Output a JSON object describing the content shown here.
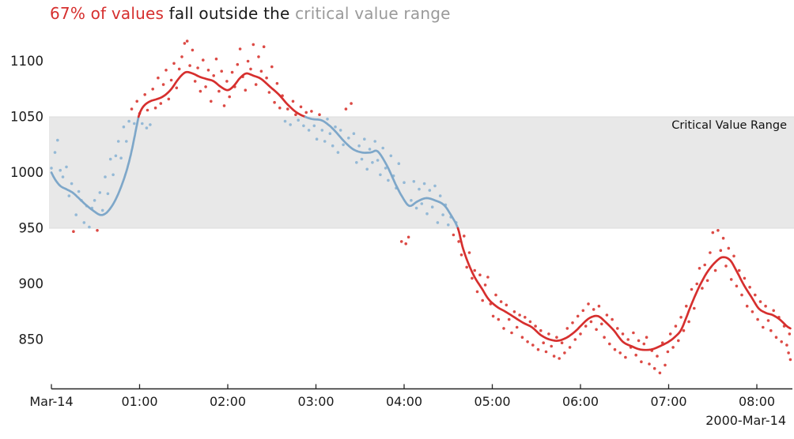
{
  "title": {
    "parts": [
      {
        "text": "67% of values",
        "color": "#d62f2e"
      },
      {
        "text": " fall outside the ",
        "color": "#1a1a1a"
      },
      {
        "text": "critical value range",
        "color": "#9a9a9a"
      }
    ]
  },
  "chart_data": {
    "type": "scatter",
    "title": "67% of values fall outside the critical value range",
    "legend_position": "none",
    "grid": false,
    "x_axis": {
      "lim": [
        0,
        8.42
      ],
      "ticks": [
        {
          "t": 0,
          "label": "Mar-14"
        },
        {
          "t": 1,
          "label": "01:00"
        },
        {
          "t": 2,
          "label": "02:00"
        },
        {
          "t": 3,
          "label": "03:00"
        },
        {
          "t": 4,
          "label": "04:00"
        },
        {
          "t": 5,
          "label": "05:00"
        },
        {
          "t": 6,
          "label": "06:00"
        },
        {
          "t": 7,
          "label": "07:00"
        },
        {
          "t": 8,
          "label": "08:00"
        }
      ],
      "secondary_label": "2000-Mar-14",
      "unit": "hours since 2000-Mar-14 00:00"
    },
    "y_axis": {
      "lim": [
        806,
        1120
      ],
      "ticks": [
        850,
        900,
        950,
        1000,
        1050,
        1100
      ]
    },
    "band": {
      "from": 950,
      "to": 1050,
      "label": "Critical Value Range",
      "fill": "#e8e8e8",
      "edge": "#dcdcdc"
    },
    "colors": {
      "inside_line": "#7ea7c9",
      "inside_point": "#94b9d6",
      "outside_line": "#d62f2e",
      "outside_point": "#dc4a45"
    },
    "trend_line": [
      [
        0.0,
        1000
      ],
      [
        0.04,
        994
      ],
      [
        0.1,
        988
      ],
      [
        0.17,
        985
      ],
      [
        0.24,
        982
      ],
      [
        0.31,
        977
      ],
      [
        0.39,
        971
      ],
      [
        0.47,
        966
      ],
      [
        0.55,
        962
      ],
      [
        0.61,
        963
      ],
      [
        0.67,
        968
      ],
      [
        0.73,
        976
      ],
      [
        0.79,
        987
      ],
      [
        0.85,
        1001
      ],
      [
        0.9,
        1016
      ],
      [
        0.94,
        1031
      ],
      [
        0.97,
        1043
      ],
      [
        1.0,
        1053
      ],
      [
        1.05,
        1060
      ],
      [
        1.12,
        1064
      ],
      [
        1.2,
        1066
      ],
      [
        1.28,
        1069
      ],
      [
        1.36,
        1075
      ],
      [
        1.44,
        1084
      ],
      [
        1.52,
        1090
      ],
      [
        1.6,
        1089
      ],
      [
        1.68,
        1086
      ],
      [
        1.76,
        1084
      ],
      [
        1.84,
        1082
      ],
      [
        1.92,
        1077
      ],
      [
        2.0,
        1074
      ],
      [
        2.07,
        1078
      ],
      [
        2.14,
        1085
      ],
      [
        2.21,
        1089
      ],
      [
        2.29,
        1087
      ],
      [
        2.38,
        1084
      ],
      [
        2.48,
        1077
      ],
      [
        2.58,
        1070
      ],
      [
        2.68,
        1061
      ],
      [
        2.78,
        1054
      ],
      [
        2.88,
        1050
      ],
      [
        2.96,
        1048
      ],
      [
        3.06,
        1047
      ],
      [
        3.14,
        1043
      ],
      [
        3.22,
        1037
      ],
      [
        3.32,
        1028
      ],
      [
        3.42,
        1021
      ],
      [
        3.52,
        1018
      ],
      [
        3.62,
        1018
      ],
      [
        3.7,
        1019
      ],
      [
        3.8,
        1007
      ],
      [
        3.9,
        990
      ],
      [
        3.98,
        978
      ],
      [
        4.06,
        970
      ],
      [
        4.15,
        974
      ],
      [
        4.25,
        977
      ],
      [
        4.35,
        975
      ],
      [
        4.45,
        971
      ],
      [
        4.53,
        962
      ],
      [
        4.61,
        950
      ],
      [
        4.66,
        934
      ],
      [
        4.72,
        920
      ],
      [
        4.8,
        906
      ],
      [
        4.88,
        896
      ],
      [
        4.96,
        886
      ],
      [
        5.06,
        879
      ],
      [
        5.15,
        875
      ],
      [
        5.25,
        870
      ],
      [
        5.35,
        865
      ],
      [
        5.45,
        861
      ],
      [
        5.55,
        854
      ],
      [
        5.65,
        850
      ],
      [
        5.75,
        849
      ],
      [
        5.85,
        852
      ],
      [
        5.95,
        858
      ],
      [
        6.05,
        866
      ],
      [
        6.12,
        870
      ],
      [
        6.2,
        871
      ],
      [
        6.28,
        866
      ],
      [
        6.38,
        858
      ],
      [
        6.48,
        848
      ],
      [
        6.58,
        844
      ],
      [
        6.68,
        841
      ],
      [
        6.8,
        841
      ],
      [
        6.9,
        844
      ],
      [
        7.0,
        848
      ],
      [
        7.08,
        853
      ],
      [
        7.15,
        860
      ],
      [
        7.25,
        880
      ],
      [
        7.35,
        898
      ],
      [
        7.45,
        912
      ],
      [
        7.55,
        921
      ],
      [
        7.62,
        924
      ],
      [
        7.7,
        921
      ],
      [
        7.78,
        910
      ],
      [
        7.86,
        898
      ],
      [
        7.94,
        888
      ],
      [
        8.02,
        878
      ],
      [
        8.1,
        874
      ],
      [
        8.18,
        872
      ],
      [
        8.26,
        868
      ],
      [
        8.34,
        862
      ],
      [
        8.38,
        860
      ]
    ],
    "scatter": [
      [
        0.0,
        1004
      ],
      [
        0.04,
        1018
      ],
      [
        0.07,
        1029
      ],
      [
        0.1,
        1002
      ],
      [
        0.13,
        996
      ],
      [
        0.17,
        1005
      ],
      [
        0.2,
        979
      ],
      [
        0.23,
        990
      ],
      [
        0.25,
        947
      ],
      [
        0.28,
        962
      ],
      [
        0.31,
        983
      ],
      [
        0.34,
        975
      ],
      [
        0.37,
        955
      ],
      [
        0.4,
        970
      ],
      [
        0.43,
        951
      ],
      [
        0.46,
        968
      ],
      [
        0.49,
        975
      ],
      [
        0.52,
        948
      ],
      [
        0.55,
        982
      ],
      [
        0.58,
        966
      ],
      [
        0.61,
        996
      ],
      [
        0.64,
        981
      ],
      [
        0.67,
        1012
      ],
      [
        0.7,
        998
      ],
      [
        0.73,
        1015
      ],
      [
        0.76,
        1028
      ],
      [
        0.79,
        1013
      ],
      [
        0.82,
        1041
      ],
      [
        0.85,
        1028
      ],
      [
        0.88,
        1046
      ],
      [
        0.91,
        1057
      ],
      [
        0.94,
        1044
      ],
      [
        0.97,
        1064
      ],
      [
        1.0,
        1053
      ],
      [
        1.03,
        1044
      ],
      [
        1.06,
        1070
      ],
      [
        1.08,
        1040
      ],
      [
        1.09,
        1056
      ],
      [
        1.12,
        1043
      ],
      [
        1.15,
        1075
      ],
      [
        1.18,
        1058
      ],
      [
        1.21,
        1085
      ],
      [
        1.24,
        1062
      ],
      [
        1.27,
        1079
      ],
      [
        1.3,
        1092
      ],
      [
        1.33,
        1066
      ],
      [
        1.36,
        1083
      ],
      [
        1.39,
        1098
      ],
      [
        1.42,
        1076
      ],
      [
        1.45,
        1093
      ],
      [
        1.48,
        1104
      ],
      [
        1.51,
        1116
      ],
      [
        1.54,
        1118
      ],
      [
        1.57,
        1096
      ],
      [
        1.6,
        1110
      ],
      [
        1.63,
        1082
      ],
      [
        1.66,
        1094
      ],
      [
        1.69,
        1073
      ],
      [
        1.72,
        1101
      ],
      [
        1.75,
        1077
      ],
      [
        1.78,
        1092
      ],
      [
        1.81,
        1064
      ],
      [
        1.84,
        1087
      ],
      [
        1.87,
        1102
      ],
      [
        1.9,
        1073
      ],
      [
        1.93,
        1091
      ],
      [
        1.96,
        1060
      ],
      [
        1.99,
        1082
      ],
      [
        2.02,
        1068
      ],
      [
        2.05,
        1090
      ],
      [
        2.08,
        1077
      ],
      [
        2.11,
        1097
      ],
      [
        2.14,
        1111
      ],
      [
        2.17,
        1086
      ],
      [
        2.2,
        1074
      ],
      [
        2.23,
        1100
      ],
      [
        2.26,
        1093
      ],
      [
        2.29,
        1115
      ],
      [
        2.32,
        1079
      ],
      [
        2.35,
        1104
      ],
      [
        2.38,
        1091
      ],
      [
        2.41,
        1113
      ],
      [
        2.44,
        1085
      ],
      [
        2.47,
        1072
      ],
      [
        2.5,
        1095
      ],
      [
        2.53,
        1063
      ],
      [
        2.56,
        1080
      ],
      [
        2.59,
        1058
      ],
      [
        2.62,
        1069
      ],
      [
        2.65,
        1046
      ],
      [
        2.68,
        1057
      ],
      [
        2.71,
        1043
      ],
      [
        2.74,
        1064
      ],
      [
        2.77,
        1052
      ],
      [
        2.8,
        1047
      ],
      [
        2.83,
        1059
      ],
      [
        2.86,
        1042
      ],
      [
        2.89,
        1054
      ],
      [
        2.92,
        1038
      ],
      [
        2.95,
        1055
      ],
      [
        2.98,
        1042
      ],
      [
        3.01,
        1030
      ],
      [
        3.04,
        1052
      ],
      [
        3.07,
        1038
      ],
      [
        3.1,
        1028
      ],
      [
        3.13,
        1048
      ],
      [
        3.16,
        1035
      ],
      [
        3.19,
        1024
      ],
      [
        3.22,
        1041
      ],
      [
        3.25,
        1018
      ],
      [
        3.28,
        1038
      ],
      [
        3.31,
        1025
      ],
      [
        3.34,
        1057
      ],
      [
        3.37,
        1031
      ],
      [
        3.4,
        1062
      ],
      [
        3.43,
        1035
      ],
      [
        3.46,
        1009
      ],
      [
        3.49,
        1024
      ],
      [
        3.52,
        1012
      ],
      [
        3.55,
        1030
      ],
      [
        3.58,
        1003
      ],
      [
        3.61,
        1021
      ],
      [
        3.64,
        1009
      ],
      [
        3.67,
        1028
      ],
      [
        3.7,
        1011
      ],
      [
        3.73,
        998
      ],
      [
        3.76,
        1022
      ],
      [
        3.79,
        1004
      ],
      [
        3.82,
        993
      ],
      [
        3.85,
        1015
      ],
      [
        3.88,
        997
      ],
      [
        3.91,
        986
      ],
      [
        3.94,
        1008
      ],
      [
        3.97,
        938
      ],
      [
        4.0,
        991
      ],
      [
        4.02,
        936
      ],
      [
        4.05,
        942
      ],
      [
        4.08,
        975
      ],
      [
        4.11,
        992
      ],
      [
        4.14,
        968
      ],
      [
        4.17,
        985
      ],
      [
        4.2,
        972
      ],
      [
        4.23,
        990
      ],
      [
        4.26,
        963
      ],
      [
        4.29,
        984
      ],
      [
        4.32,
        969
      ],
      [
        4.35,
        988
      ],
      [
        4.38,
        955
      ],
      [
        4.41,
        979
      ],
      [
        4.44,
        962
      ],
      [
        4.47,
        971
      ],
      [
        4.5,
        953
      ],
      [
        4.53,
        960
      ],
      [
        4.56,
        944
      ],
      [
        4.59,
        955
      ],
      [
        4.62,
        938
      ],
      [
        4.65,
        926
      ],
      [
        4.68,
        943
      ],
      [
        4.71,
        915
      ],
      [
        4.74,
        928
      ],
      [
        4.77,
        905
      ],
      [
        4.8,
        912
      ],
      [
        4.83,
        893
      ],
      [
        4.86,
        908
      ],
      [
        4.89,
        885
      ],
      [
        4.92,
        899
      ],
      [
        4.95,
        906
      ],
      [
        4.98,
        882
      ],
      [
        5.01,
        871
      ],
      [
        5.04,
        890
      ],
      [
        5.07,
        868
      ],
      [
        5.1,
        884
      ],
      [
        5.13,
        860
      ],
      [
        5.16,
        881
      ],
      [
        5.19,
        868
      ],
      [
        5.22,
        856
      ],
      [
        5.25,
        875
      ],
      [
        5.28,
        861
      ],
      [
        5.31,
        872
      ],
      [
        5.34,
        852
      ],
      [
        5.37,
        870
      ],
      [
        5.4,
        848
      ],
      [
        5.43,
        866
      ],
      [
        5.46,
        845
      ],
      [
        5.49,
        862
      ],
      [
        5.52,
        841
      ],
      [
        5.55,
        858
      ],
      [
        5.58,
        847
      ],
      [
        5.61,
        839
      ],
      [
        5.64,
        855
      ],
      [
        5.67,
        844
      ],
      [
        5.7,
        835
      ],
      [
        5.73,
        852
      ],
      [
        5.76,
        833
      ],
      [
        5.79,
        847
      ],
      [
        5.82,
        838
      ],
      [
        5.85,
        860
      ],
      [
        5.88,
        843
      ],
      [
        5.91,
        865
      ],
      [
        5.94,
        850
      ],
      [
        5.97,
        871
      ],
      [
        6.0,
        855
      ],
      [
        6.03,
        876
      ],
      [
        6.06,
        862
      ],
      [
        6.09,
        882
      ],
      [
        6.12,
        866
      ],
      [
        6.15,
        877
      ],
      [
        6.18,
        859
      ],
      [
        6.21,
        880
      ],
      [
        6.24,
        864
      ],
      [
        6.27,
        852
      ],
      [
        6.3,
        872
      ],
      [
        6.33,
        846
      ],
      [
        6.36,
        868
      ],
      [
        6.39,
        841
      ],
      [
        6.42,
        860
      ],
      [
        6.45,
        838
      ],
      [
        6.48,
        855
      ],
      [
        6.51,
        834
      ],
      [
        6.54,
        850
      ],
      [
        6.57,
        843
      ],
      [
        6.6,
        856
      ],
      [
        6.63,
        836
      ],
      [
        6.66,
        849
      ],
      [
        6.69,
        830
      ],
      [
        6.72,
        846
      ],
      [
        6.75,
        852
      ],
      [
        6.78,
        828
      ],
      [
        6.81,
        840
      ],
      [
        6.84,
        824
      ],
      [
        6.87,
        835
      ],
      [
        6.9,
        820
      ],
      [
        6.93,
        847
      ],
      [
        6.96,
        827
      ],
      [
        6.99,
        839
      ],
      [
        7.02,
        855
      ],
      [
        7.05,
        843
      ],
      [
        7.08,
        862
      ],
      [
        7.11,
        849
      ],
      [
        7.14,
        870
      ],
      [
        7.17,
        858
      ],
      [
        7.2,
        880
      ],
      [
        7.23,
        866
      ],
      [
        7.26,
        895
      ],
      [
        7.29,
        878
      ],
      [
        7.32,
        900
      ],
      [
        7.35,
        914
      ],
      [
        7.38,
        896
      ],
      [
        7.41,
        917
      ],
      [
        7.44,
        903
      ],
      [
        7.47,
        928
      ],
      [
        7.5,
        946
      ],
      [
        7.53,
        912
      ],
      [
        7.56,
        948
      ],
      [
        7.59,
        930
      ],
      [
        7.62,
        941
      ],
      [
        7.65,
        916
      ],
      [
        7.68,
        932
      ],
      [
        7.71,
        904
      ],
      [
        7.74,
        925
      ],
      [
        7.77,
        898
      ],
      [
        7.8,
        912
      ],
      [
        7.83,
        890
      ],
      [
        7.86,
        905
      ],
      [
        7.89,
        880
      ],
      [
        7.92,
        897
      ],
      [
        7.95,
        875
      ],
      [
        7.98,
        890
      ],
      [
        8.01,
        868
      ],
      [
        8.04,
        884
      ],
      [
        8.07,
        861
      ],
      [
        8.1,
        880
      ],
      [
        8.13,
        867
      ],
      [
        8.16,
        858
      ],
      [
        8.19,
        876
      ],
      [
        8.22,
        852
      ],
      [
        8.25,
        870
      ],
      [
        8.28,
        848
      ],
      [
        8.31,
        862
      ],
      [
        8.34,
        845
      ],
      [
        8.36,
        838
      ],
      [
        8.37,
        855
      ],
      [
        8.38,
        832
      ]
    ]
  }
}
